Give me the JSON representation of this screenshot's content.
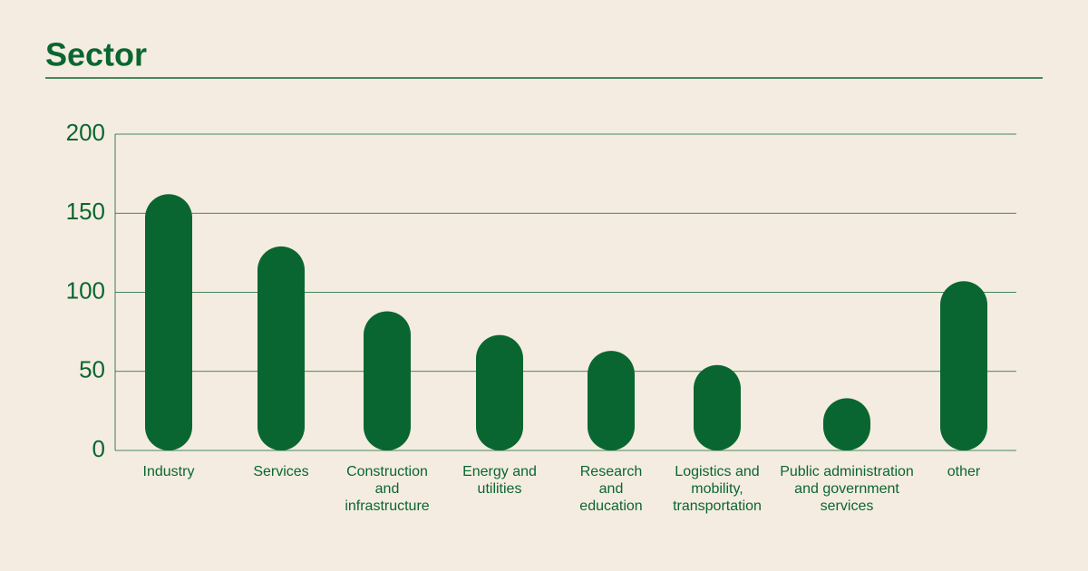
{
  "chart_data": {
    "type": "bar",
    "title": "Sector",
    "categories": [
      "Industry",
      "Services",
      "Construction and infrastructure",
      "Energy and utilities",
      "Research and education",
      "Logistics and mobility, transportation",
      "Public administration and government services",
      "other"
    ],
    "values": [
      162,
      129,
      88,
      73,
      63,
      54,
      33,
      107
    ],
    "color": "#0a6630",
    "ylim": [
      0,
      200
    ],
    "yticks": [
      0,
      50,
      100,
      150,
      200
    ],
    "grid": true
  }
}
